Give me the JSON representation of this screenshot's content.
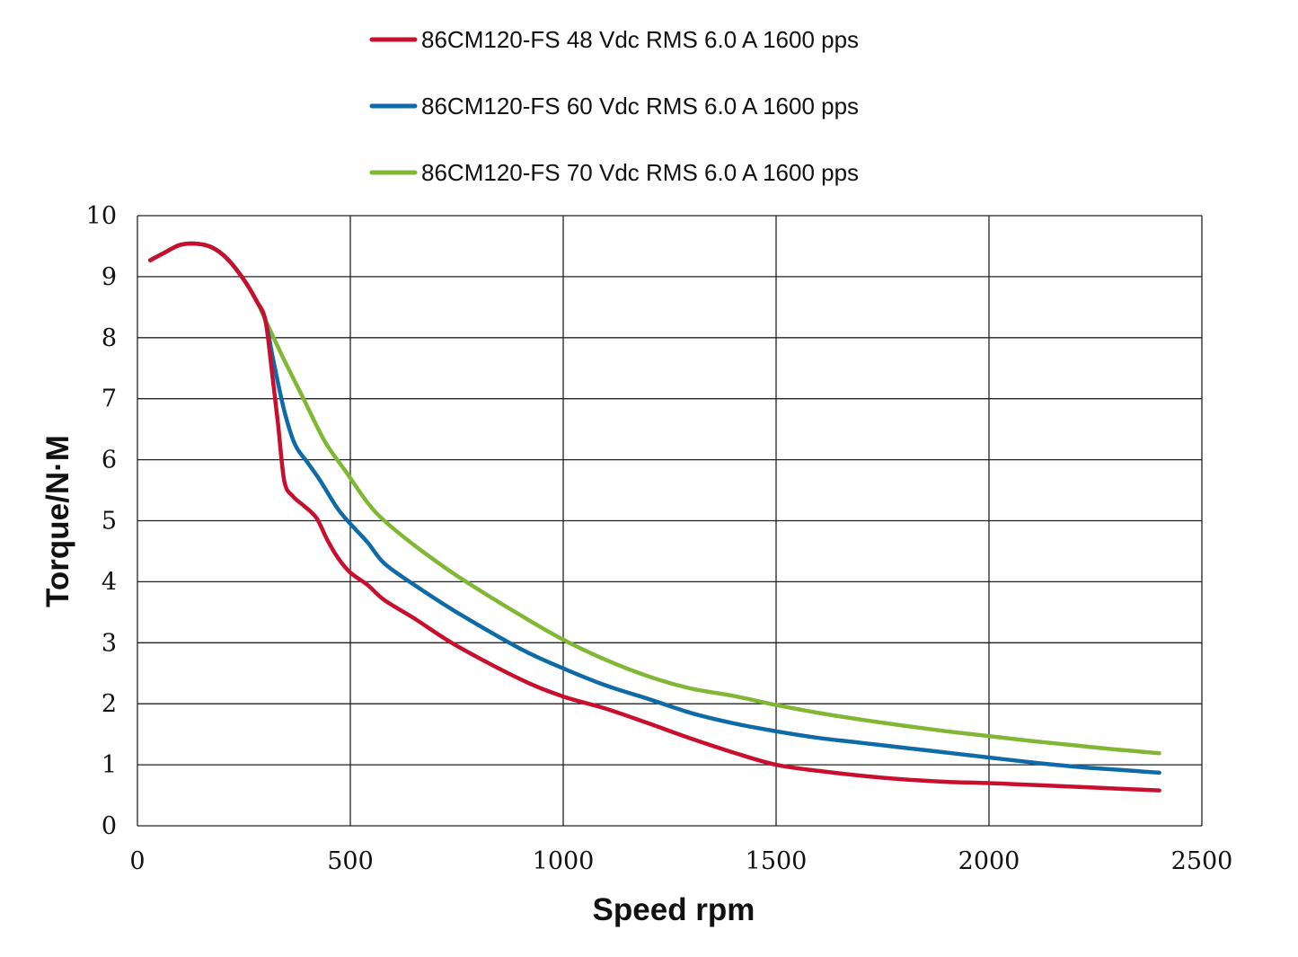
{
  "chart_data": {
    "type": "line",
    "title": "",
    "xlabel": "Speed rpm",
    "ylabel": "Torque/N·M",
    "xlim": [
      0,
      2500
    ],
    "ylim": [
      0,
      10
    ],
    "x_ticks": [
      0,
      500,
      1000,
      1500,
      2000,
      2500
    ],
    "y_ticks": [
      0,
      1,
      2,
      3,
      4,
      5,
      6,
      7,
      8,
      9,
      10
    ],
    "grid": true,
    "legend_position": "top-center",
    "series": [
      {
        "name": "86CM120-FS 48 Vdc RMS 6.0 A 1600 pps",
        "color": "#c8102e",
        "x": [
          30,
          60,
          100,
          140,
          175,
          210,
          250,
          280,
          300,
          315,
          330,
          345,
          365,
          390,
          420,
          445,
          470,
          500,
          540,
          580,
          650,
          750,
          900,
          1000,
          1100,
          1200,
          1300,
          1400,
          1500,
          1600,
          1700,
          1800,
          1900,
          2000,
          2100,
          2200,
          2300,
          2400
        ],
        "y": [
          9.27,
          9.38,
          9.52,
          9.54,
          9.48,
          9.3,
          8.95,
          8.6,
          8.3,
          7.5,
          6.6,
          5.65,
          5.4,
          5.25,
          5.05,
          4.7,
          4.4,
          4.15,
          3.95,
          3.7,
          3.4,
          2.95,
          2.4,
          2.12,
          1.92,
          1.68,
          1.43,
          1.2,
          1.0,
          0.9,
          0.82,
          0.76,
          0.72,
          0.7,
          0.67,
          0.64,
          0.61,
          0.58
        ]
      },
      {
        "name": "86CM120-FS 60 Vdc RMS 6.0 A 1600 pps",
        "color": "#0f6aa8",
        "x": [
          30,
          60,
          100,
          140,
          175,
          210,
          250,
          280,
          300,
          320,
          345,
          370,
          400,
          430,
          470,
          500,
          540,
          580,
          650,
          750,
          900,
          1000,
          1100,
          1200,
          1300,
          1400,
          1500,
          1600,
          1700,
          1800,
          1900,
          2000,
          2100,
          2200,
          2300,
          2400
        ],
        "y": [
          9.27,
          9.38,
          9.52,
          9.54,
          9.48,
          9.3,
          8.95,
          8.6,
          8.3,
          7.6,
          6.8,
          6.25,
          5.95,
          5.65,
          5.2,
          4.95,
          4.65,
          4.3,
          3.95,
          3.5,
          2.9,
          2.58,
          2.3,
          2.08,
          1.85,
          1.68,
          1.55,
          1.44,
          1.36,
          1.28,
          1.2,
          1.12,
          1.04,
          0.97,
          0.92,
          0.87
        ]
      },
      {
        "name": "86CM120-FS 70 Vdc RMS 6.0 A 1600 pps",
        "color": "#82b735",
        "x": [
          30,
          60,
          100,
          140,
          175,
          210,
          250,
          280,
          300,
          340,
          390,
          440,
          490,
          540,
          580,
          650,
          750,
          900,
          1000,
          1100,
          1200,
          1300,
          1400,
          1500,
          1600,
          1700,
          1800,
          1900,
          2000,
          2100,
          2200,
          2300,
          2400
        ],
        "y": [
          9.27,
          9.38,
          9.52,
          9.54,
          9.48,
          9.3,
          8.95,
          8.6,
          8.3,
          7.7,
          7.0,
          6.3,
          5.8,
          5.3,
          5.0,
          4.6,
          4.1,
          3.45,
          3.05,
          2.72,
          2.45,
          2.25,
          2.13,
          1.98,
          1.85,
          1.74,
          1.64,
          1.55,
          1.47,
          1.39,
          1.32,
          1.25,
          1.19
        ]
      }
    ]
  }
}
